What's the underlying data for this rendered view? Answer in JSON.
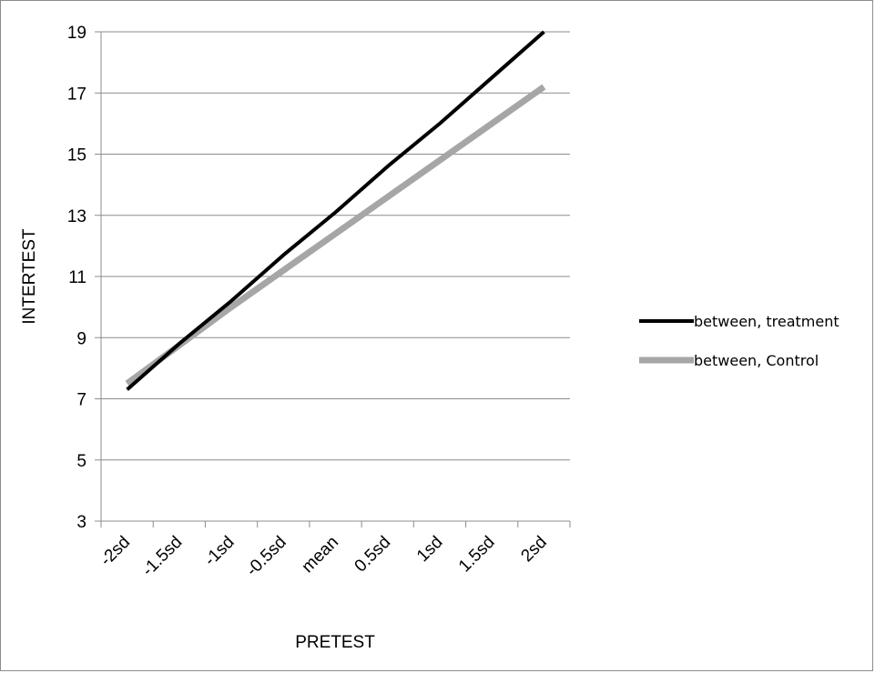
{
  "chart_data": {
    "type": "line",
    "title": "",
    "xlabel": "PRETEST",
    "ylabel": "INTERTEST",
    "categories": [
      "-2sd",
      "-1.5sd",
      "-1sd",
      "-0.5sd",
      "mean",
      "0.5sd",
      "1sd",
      "1.5sd",
      "2sd"
    ],
    "ylim": [
      3,
      19
    ],
    "yticks": [
      3,
      5,
      7,
      9,
      11,
      13,
      15,
      17,
      19
    ],
    "grid": true,
    "legend_position": "right",
    "series": [
      {
        "name": "between, treatment",
        "color": "#000000",
        "values": [
          7.3,
          8.8,
          10.2,
          11.7,
          13.1,
          14.6,
          16.0,
          17.5,
          19.0
        ]
      },
      {
        "name": "between, Control",
        "color": "#a6a6a6",
        "values": [
          7.5,
          8.75,
          10.0,
          11.2,
          12.4,
          13.6,
          14.8,
          16.0,
          17.2
        ]
      }
    ]
  }
}
